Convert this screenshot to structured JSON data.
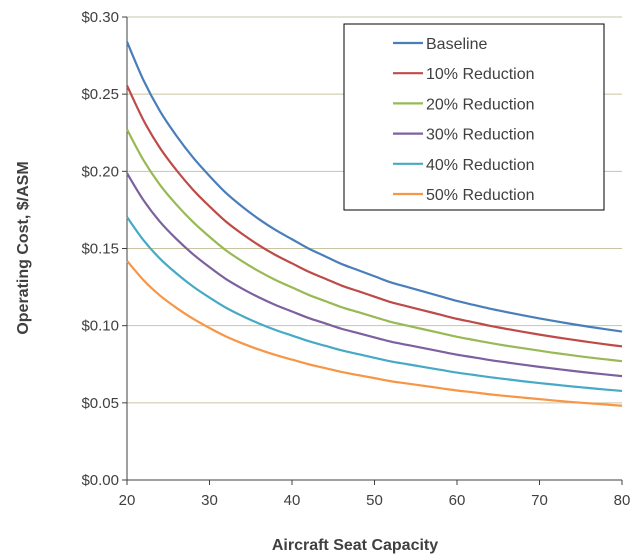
{
  "chart_data": {
    "type": "line",
    "title": "",
    "xlabel": "Aircraft Seat Capacity",
    "ylabel": "Operating Cost,  $/ASM",
    "xlim": [
      20,
      80
    ],
    "ylim": [
      0,
      0.3
    ],
    "x_ticks": [
      "20",
      "30",
      "40",
      "50",
      "60",
      "70",
      "80"
    ],
    "y_ticks": [
      "$0.00",
      "$0.05",
      "$0.10",
      "$0.15",
      "$0.20",
      "$0.25",
      "$0.30"
    ],
    "grid": "horizontal",
    "legend_position": "top-right",
    "x": [
      20,
      22,
      24,
      26,
      28,
      30,
      32,
      34,
      36,
      38,
      40,
      42,
      44,
      46,
      48,
      50,
      52,
      54,
      56,
      58,
      60,
      62,
      64,
      66,
      68,
      70,
      72,
      74,
      76,
      78,
      80
    ],
    "series": [
      {
        "name": "Baseline",
        "color": "#4a7ebb",
        "values": [
          0.284,
          0.259,
          0.239,
          0.223,
          0.209,
          0.197,
          0.186,
          0.177,
          0.169,
          0.162,
          0.156,
          0.15,
          0.145,
          0.14,
          0.136,
          0.132,
          0.128,
          0.125,
          0.122,
          0.119,
          0.116,
          0.1135,
          0.111,
          0.1088,
          0.1067,
          0.1047,
          0.1028,
          0.101,
          0.0993,
          0.0977,
          0.0962
        ]
      },
      {
        "name": "10% Reduction",
        "color": "#be4b48",
        "values": [
          0.2556,
          0.2331,
          0.2151,
          0.2007,
          0.1881,
          0.1773,
          0.1674,
          0.1593,
          0.1521,
          0.1458,
          0.1404,
          0.135,
          0.1305,
          0.126,
          0.1224,
          0.1188,
          0.1152,
          0.1125,
          0.1098,
          0.1071,
          0.1044,
          0.1022,
          0.0999,
          0.0979,
          0.096,
          0.0942,
          0.0925,
          0.0909,
          0.0894,
          0.0879,
          0.0866
        ]
      },
      {
        "name": "20% Reduction",
        "color": "#98b954",
        "values": [
          0.2272,
          0.2072,
          0.1912,
          0.1784,
          0.1672,
          0.1576,
          0.1488,
          0.1416,
          0.1352,
          0.1296,
          0.1248,
          0.12,
          0.116,
          0.112,
          0.1088,
          0.1056,
          0.1024,
          0.1,
          0.0976,
          0.0952,
          0.0928,
          0.0908,
          0.0888,
          0.087,
          0.0854,
          0.0838,
          0.0822,
          0.0808,
          0.0794,
          0.0782,
          0.077
        ]
      },
      {
        "name": "30% Reduction",
        "color": "#7d60a0",
        "values": [
          0.1988,
          0.1813,
          0.1673,
          0.1561,
          0.1463,
          0.1379,
          0.1302,
          0.1239,
          0.1183,
          0.1134,
          0.1092,
          0.105,
          0.1015,
          0.098,
          0.0952,
          0.0924,
          0.0896,
          0.0875,
          0.0854,
          0.0833,
          0.0812,
          0.0795,
          0.0777,
          0.0762,
          0.0747,
          0.0733,
          0.072,
          0.0707,
          0.0695,
          0.0684,
          0.0673
        ]
      },
      {
        "name": "40% Reduction",
        "color": "#46aac5",
        "values": [
          0.1704,
          0.1554,
          0.1434,
          0.1338,
          0.1254,
          0.1182,
          0.1116,
          0.1062,
          0.1014,
          0.0972,
          0.0936,
          0.09,
          0.087,
          0.084,
          0.0816,
          0.0792,
          0.0768,
          0.075,
          0.0732,
          0.0714,
          0.0696,
          0.0681,
          0.0666,
          0.0653,
          0.064,
          0.0628,
          0.0617,
          0.0606,
          0.0596,
          0.0586,
          0.0577
        ]
      },
      {
        "name": "50% Reduction",
        "color": "#f79646",
        "values": [
          0.142,
          0.1295,
          0.1195,
          0.1115,
          0.1045,
          0.0985,
          0.093,
          0.0885,
          0.0845,
          0.081,
          0.078,
          0.075,
          0.0725,
          0.07,
          0.068,
          0.066,
          0.064,
          0.0625,
          0.061,
          0.0595,
          0.058,
          0.0568,
          0.0555,
          0.0544,
          0.0534,
          0.0524,
          0.0514,
          0.0505,
          0.0497,
          0.0489,
          0.0481
        ]
      }
    ]
  }
}
